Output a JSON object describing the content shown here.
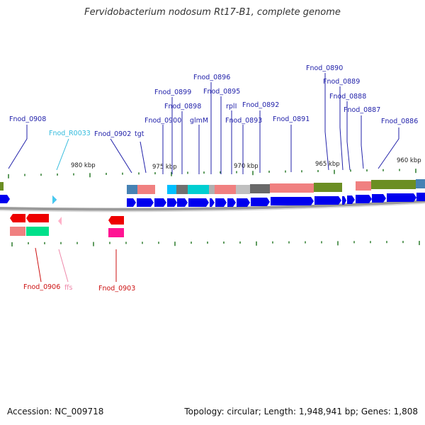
{
  "title": "Fervidobacterium nodosum Rt17-B1, complete genome",
  "footer": {
    "accession": "Accession: NC_009718",
    "summary": "Topology: circular; Length: 1,948,941 bp; Genes: 1,808"
  },
  "scale_labels": [
    "980 kbp",
    "975 kbp",
    "970 kbp",
    "965 kbp",
    "960 kbp"
  ],
  "upper_labels": [
    {
      "text": "Fnod_0908",
      "color": "#2222aa"
    },
    {
      "text": "Fnod_R0033",
      "color": "#33bbdd"
    },
    {
      "text": "Fnod_0902",
      "color": "#2222aa"
    },
    {
      "text": "tgt",
      "color": "#2222aa"
    },
    {
      "text": "Fnod_0900",
      "color": "#2222aa"
    },
    {
      "text": "Fnod_0899",
      "color": "#2222aa"
    },
    {
      "text": "Fnod_0898",
      "color": "#2222aa"
    },
    {
      "text": "Fnod_0896",
      "color": "#2222aa"
    },
    {
      "text": "glmM",
      "color": "#2222aa"
    },
    {
      "text": "Fnod_0895",
      "color": "#2222aa"
    },
    {
      "text": "rplI",
      "color": "#2222aa"
    },
    {
      "text": "Fnod_0893",
      "color": "#2222aa"
    },
    {
      "text": "Fnod_0892",
      "color": "#2222aa"
    },
    {
      "text": "Fnod_0891",
      "color": "#2222aa"
    },
    {
      "text": "Fnod_0890",
      "color": "#2222aa"
    },
    {
      "text": "Fnod_0889",
      "color": "#2222aa"
    },
    {
      "text": "Fnod_0888",
      "color": "#2222aa"
    },
    {
      "text": "Fnod_0887",
      "color": "#2222aa"
    },
    {
      "text": "Fnod_0886",
      "color": "#2222aa"
    }
  ],
  "lower_labels": [
    {
      "text": "Fnod_0906",
      "color": "#cc1111"
    },
    {
      "text": "ffs",
      "color": "#ee88aa"
    },
    {
      "text": "Fnod_0903",
      "color": "#cc1111"
    }
  ],
  "colors": {
    "forward_gene": "#0000ee",
    "reverse_gene": "#ee0000",
    "trna": "#44ccee",
    "ncrna": "#ffaacc",
    "tick": "#2a7a2a",
    "backbone": "#888888"
  }
}
